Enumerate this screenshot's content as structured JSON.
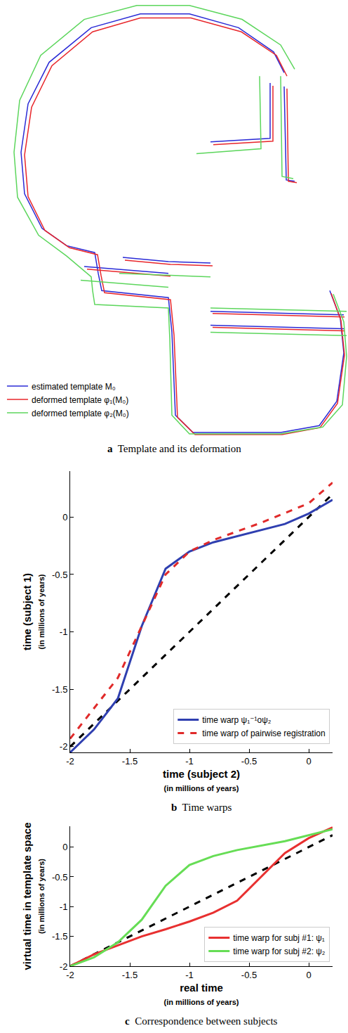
{
  "chart_data": [
    {
      "type": "line",
      "label": "a",
      "title": "Template and its deformation",
      "tick_labels": false,
      "legend": "bottom-left",
      "xlim": [
        0,
        496
      ],
      "ylim": [
        630,
        0
      ],
      "series": [
        {
          "name": "estimated template M₀",
          "color": "#2a2ad6",
          "line_style": "solid",
          "x": [
            405,
            390,
            340,
            270,
            200,
            130,
            70,
            40,
            30,
            35,
            60,
            95,
            135,
            140,
            145,
            240,
            245,
            250,
            275,
            400,
            455,
            480,
            490,
            485,
            470,
            null,
            175,
            240,
            300,
            null,
            120,
            240,
            null,
            385,
            385,
            300,
            null,
            405,
            408,
            420,
            null,
            300,
            490,
            null,
            300,
            490
          ],
          "y": [
            105,
            75,
            40,
            20,
            20,
            40,
            90,
            150,
            220,
            280,
            330,
            355,
            365,
            395,
            420,
            430,
            480,
            600,
            625,
            625,
            615,
            580,
            510,
            460,
            420,
            null,
            372,
            378,
            380,
            null,
            385,
            395,
            null,
            120,
            200,
            205,
            null,
            125,
            260,
            262,
            null,
            450,
            455,
            null,
            470,
            475
          ]
        },
        {
          "name": "deformed template φ₁(M₀)",
          "color": "#e8262b",
          "line_style": "solid",
          "x": [
            409,
            394,
            344,
            272,
            200,
            132,
            74,
            45,
            35,
            40,
            64,
            99,
            139,
            144,
            149,
            243,
            248,
            253,
            278,
            402,
            456,
            481,
            491,
            486,
            472,
            null,
            178,
            243,
            303,
            null,
            124,
            243,
            null,
            389,
            389,
            304,
            null,
            409,
            411,
            423,
            null,
            303,
            491,
            null,
            303,
            491
          ],
          "y": [
            110,
            80,
            46,
            26,
            26,
            46,
            95,
            155,
            224,
            284,
            333,
            358,
            368,
            398,
            423,
            433,
            484,
            603,
            628,
            628,
            618,
            583,
            513,
            463,
            424,
            null,
            376,
            382,
            384,
            null,
            389,
            399,
            null,
            124,
            204,
            209,
            null,
            128,
            262,
            264,
            null,
            453,
            458,
            null,
            473,
            478
          ]
        },
        {
          "name": "deformed template φ₂(M₀)",
          "color": "#5cd65c",
          "line_style": "solid",
          "x": [
            420,
            400,
            345,
            270,
            195,
            120,
            58,
            28,
            20,
            25,
            55,
            95,
            130,
            132,
            135,
            240,
            242,
            245,
            270,
            400,
            460,
            488,
            494,
            490,
            475,
            null,
            170,
            240,
            300,
            null,
            115,
            240,
            null,
            370,
            372,
            280,
            null,
            400,
            402,
            418,
            null,
            300,
            494,
            null,
            300,
            494
          ],
          "y": [
            100,
            65,
            28,
            8,
            8,
            28,
            80,
            145,
            220,
            285,
            340,
            370,
            400,
            420,
            440,
            445,
            490,
            600,
            627,
            627,
            617,
            585,
            515,
            465,
            425,
            null,
            395,
            398,
            400,
            null,
            405,
            415,
            null,
            110,
            215,
            222,
            null,
            110,
            255,
            258,
            null,
            445,
            450,
            null,
            480,
            485
          ]
        }
      ]
    },
    {
      "type": "line",
      "label": "b",
      "title": "Time warps",
      "xlabel": [
        "time (subject 2)",
        "(in millions of years)"
      ],
      "ylabel": [
        "time (subject 1)",
        "(in millions of years)"
      ],
      "xlim": [
        -2,
        0.2
      ],
      "ylim": [
        -2.05,
        0.4
      ],
      "xticks": [
        -2,
        -1.5,
        -1,
        -0.5,
        0
      ],
      "yticks": [
        -2,
        -1.5,
        -1,
        -0.5,
        0
      ],
      "grid": false,
      "legend": "bottom-right",
      "series": [
        {
          "color": "#000000",
          "line_style": "dashed",
          "x": [
            -2,
            0.2
          ],
          "y": [
            -2,
            0.2
          ]
        },
        {
          "name": "time warp ψ₁⁻¹oψ₂",
          "color": "#2f3fb0",
          "line_style": "solid",
          "x": [
            -2,
            -1.8,
            -1.6,
            -1.4,
            -1.2,
            -1,
            -0.8,
            -0.2,
            0,
            0.2
          ],
          "y": [
            -2.05,
            -1.85,
            -1.58,
            -0.95,
            -0.45,
            -0.3,
            -0.22,
            -0.06,
            0.03,
            0.15
          ]
        },
        {
          "name": "time warp of pairwise registration",
          "color": "#e02a2a",
          "line_style": "dashed",
          "x": [
            -2,
            -1.6,
            -1.4,
            -1.2,
            -1,
            -0.8,
            -0.4,
            0,
            0.2
          ],
          "y": [
            -1.93,
            -1.4,
            -0.95,
            -0.5,
            -0.3,
            -0.2,
            -0.05,
            0.12,
            0.3
          ]
        }
      ]
    },
    {
      "type": "line",
      "label": "c",
      "title": "Correspondence between subjects",
      "xlabel": [
        "real time",
        "(in millions of years)"
      ],
      "ylabel": [
        "virtual time in template space",
        "(in millions of years)"
      ],
      "xlim": [
        -2,
        0.2
      ],
      "ylim": [
        -2,
        0.35
      ],
      "xticks": [
        -2,
        -1.5,
        -1,
        -0.5,
        0
      ],
      "yticks": [
        -2,
        -1.5,
        -1,
        -0.5,
        0
      ],
      "grid": false,
      "legend": "bottom-right",
      "series": [
        {
          "color": "#000000",
          "line_style": "dashed",
          "x": [
            -2,
            0.2
          ],
          "y": [
            -2,
            0.2
          ]
        },
        {
          "name": "time warp for subj #1: ψ₁",
          "color": "#e83030",
          "line_style": "solid",
          "x": [
            -2,
            -1.8,
            -1.6,
            -1.4,
            -1.2,
            -1,
            -0.8,
            -0.6,
            -0.4,
            -0.2,
            0,
            0.2
          ],
          "y": [
            -2,
            -1.8,
            -1.65,
            -1.5,
            -1.38,
            -1.25,
            -1.1,
            -0.9,
            -0.5,
            -0.1,
            0.15,
            0.33
          ]
        },
        {
          "name": "time warp for subj #2: ψ₂",
          "color": "#66dd55",
          "line_style": "solid",
          "x": [
            -2,
            -1.8,
            -1.6,
            -1.4,
            -1.2,
            -1,
            -0.8,
            -0.6,
            -0.2,
            0,
            0.2
          ],
          "y": [
            -2,
            -1.85,
            -1.6,
            -1.22,
            -0.65,
            -0.3,
            -0.15,
            -0.05,
            0.1,
            0.2,
            0.3
          ]
        }
      ]
    }
  ]
}
